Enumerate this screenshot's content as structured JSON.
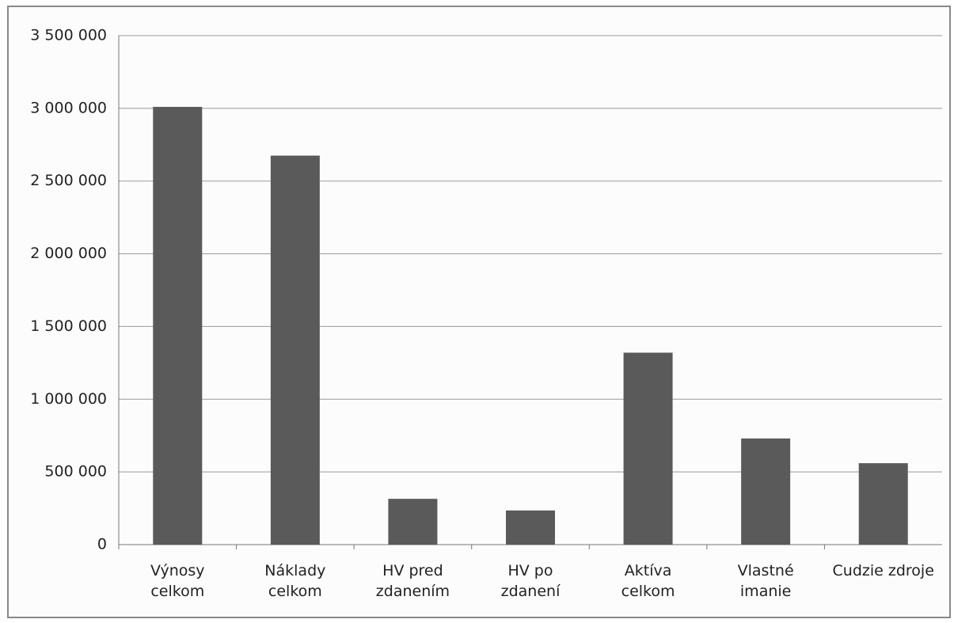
{
  "chart_data": {
    "type": "bar",
    "categories": [
      "Výnosy\ncelkom",
      "Náklady\ncelkom",
      "HV pred\nzdanením",
      "HV po\nzdanení",
      "Aktíva\ncelkom",
      "Vlastné\nimanie",
      "Cudzie zdroje"
    ],
    "values": [
      3010000,
      2675000,
      315000,
      235000,
      1320000,
      730000,
      560000
    ],
    "color": "#5a5a5a",
    "ylim": [
      0,
      3500000
    ],
    "yticks": [
      0,
      {
        "value": 500000,
        "label": "500 000"
      },
      {
        "value": 1000000,
        "label": "1 000 000"
      },
      {
        "value": 1500000,
        "label": "1 500 000"
      },
      {
        "value": 2000000,
        "label": "2 000 000"
      },
      {
        "value": 2500000,
        "label": "2 500 000"
      },
      {
        "value": 3000000,
        "label": "3 000 000"
      },
      {
        "value": 3500000,
        "label": "3 500 000"
      }
    ],
    "grid": true
  }
}
